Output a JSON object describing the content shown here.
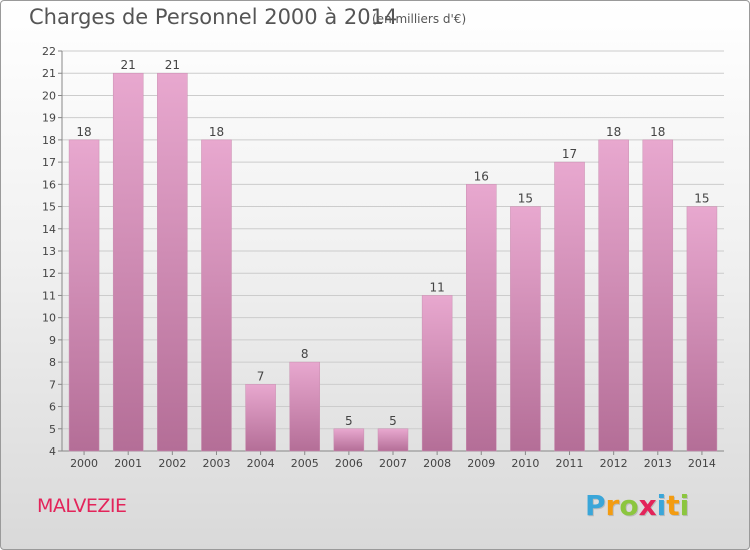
{
  "header": {
    "title": "Charges de Personnel 2000 à 2014",
    "subtitle": "(en milliers d'€)"
  },
  "footer": {
    "commune": "MALVEZIE",
    "logo_letters": [
      "P",
      "r",
      "o",
      "x",
      "i",
      "t",
      "i"
    ],
    "logo_colors": [
      "#3aa6d9",
      "#f39c12",
      "#8cc63f",
      "#e3245a",
      "#3aa6d9",
      "#f39c12",
      "#8cc63f"
    ]
  },
  "colors": {
    "bar_top": "#e8a8cf",
    "bar_bottom": "#b46e97",
    "grid": "#cccccc",
    "text": "#444444"
  },
  "chart_data": {
    "type": "bar",
    "categories": [
      "2000",
      "2001",
      "2002",
      "2003",
      "2004",
      "2005",
      "2006",
      "2007",
      "2008",
      "2009",
      "2010",
      "2011",
      "2012",
      "2013",
      "2014"
    ],
    "values": [
      18,
      21,
      21,
      18,
      7,
      8,
      5,
      5,
      11,
      16,
      15,
      17,
      18,
      18,
      15
    ],
    "ylim": [
      4,
      22
    ],
    "yticks": [
      4,
      5,
      6,
      7,
      8,
      9,
      10,
      11,
      12,
      13,
      14,
      15,
      16,
      17,
      18,
      19,
      20,
      21,
      22
    ],
    "grid": true,
    "data_labels": true
  }
}
